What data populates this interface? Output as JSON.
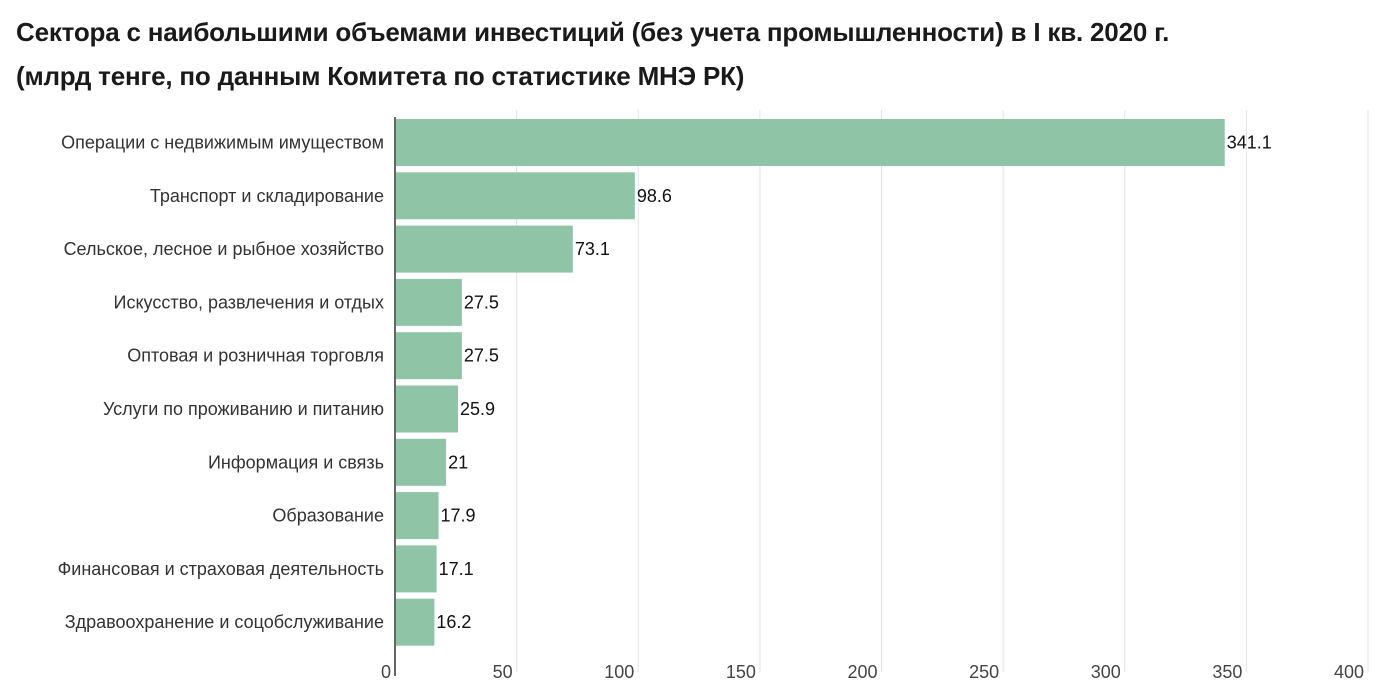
{
  "title_line1": "Сектора с наибольшими объемами инвестиций (без учета промышленности) в I кв. 2020 г.",
  "title_line2": "(млрд тенге, по данным Комитета по статистике МНЭ РК)",
  "chart_data": {
    "type": "bar",
    "orientation": "horizontal",
    "title": "Сектора с наибольшими объемами инвестиций (без учета промышленности) в I кв. 2020 г.",
    "subtitle": "(млрд тенге, по данным Комитета по статистике МНЭ РК)",
    "categories": [
      "Операции с недвижимым имуществом",
      "Транспорт и складирование",
      "Сельское, лесное и рыбное хозяйство",
      "Искусство, развлечения и отдых",
      "Оптовая и розничная торговля",
      "Услуги по проживанию и питанию",
      "Информация и связь",
      "Образование",
      "Финансовая и страховая деятельность",
      "Здравоохранение и соцобслуживание"
    ],
    "values": [
      341.1,
      98.6,
      73.1,
      27.5,
      27.5,
      25.9,
      21,
      17.9,
      17.1,
      16.2
    ],
    "value_labels": [
      "341.1",
      "98.6",
      "73.1",
      "27.5",
      "27.5",
      "25.9",
      "21",
      "17.9",
      "17.1",
      "16.2"
    ],
    "xlim": [
      0,
      400
    ],
    "xticks": [
      0,
      50,
      100,
      150,
      200,
      250,
      300,
      350,
      400
    ],
    "xtick_labels": [
      "0",
      "50",
      "100",
      "150",
      "200",
      "250",
      "300",
      "350",
      "400"
    ],
    "grid": "vertical",
    "bar_color": "#8fc4a7"
  }
}
